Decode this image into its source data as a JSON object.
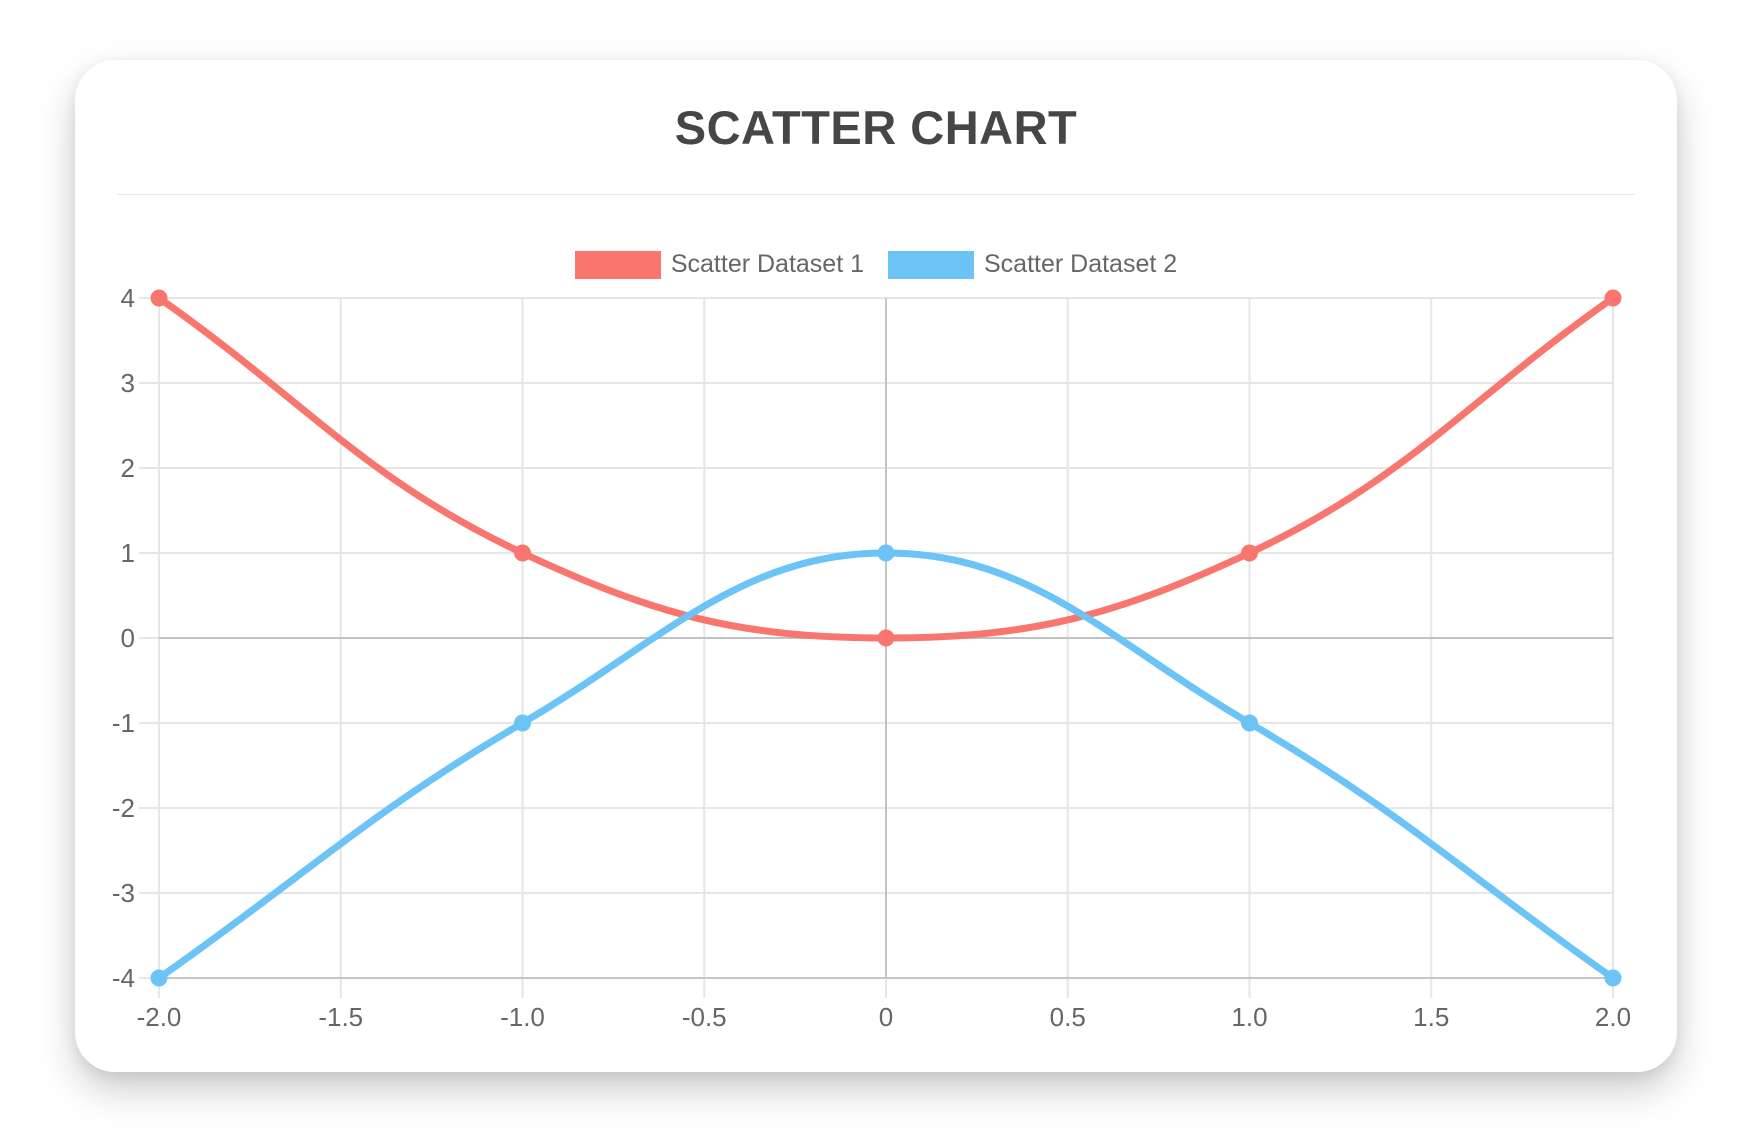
{
  "header": {
    "title": "SCATTER CHART"
  },
  "colors": {
    "title": "#464646",
    "axis_label": "#666666",
    "grid": "#e6e6e6",
    "zero_line": "#c2c2c2",
    "axis_border": "#c6c6c6",
    "card_bg": "#ffffff",
    "page_bg": "#ffffff",
    "series_1": "#f9766f",
    "series_2": "#6cc3f5"
  },
  "chart_data": {
    "type": "scatter",
    "title": "SCATTER CHART",
    "grid": true,
    "legend": {
      "position": "top"
    },
    "xlim": [
      -2,
      2
    ],
    "ylim": [
      -4,
      4
    ],
    "x_ticks": [
      {
        "v": -2.0,
        "label": "-2.0"
      },
      {
        "v": -1.5,
        "label": "-1.5"
      },
      {
        "v": -1.0,
        "label": "-1.0"
      },
      {
        "v": -0.5,
        "label": "-0.5"
      },
      {
        "v": 0,
        "label": "0"
      },
      {
        "v": 0.5,
        "label": "0.5"
      },
      {
        "v": 1.0,
        "label": "1.0"
      },
      {
        "v": 1.5,
        "label": "1.5"
      },
      {
        "v": 2.0,
        "label": "2.0"
      }
    ],
    "y_ticks": [
      {
        "v": 4,
        "label": "4"
      },
      {
        "v": 3,
        "label": "3"
      },
      {
        "v": 2,
        "label": "2"
      },
      {
        "v": 1,
        "label": "1"
      },
      {
        "v": 0,
        "label": "0"
      },
      {
        "v": -1,
        "label": "-1"
      },
      {
        "v": -2,
        "label": "-2"
      },
      {
        "v": -3,
        "label": "-3"
      },
      {
        "v": -4,
        "label": "-4"
      }
    ],
    "series": [
      {
        "name": "Scatter Dataset 1",
        "color": "#f9766f",
        "line_tension": 0.4,
        "points": [
          [
            -2,
            4
          ],
          [
            -1,
            1
          ],
          [
            0,
            0
          ],
          [
            1,
            1
          ],
          [
            2,
            4
          ]
        ]
      },
      {
        "name": "Scatter Dataset 2",
        "color": "#6cc3f5",
        "line_tension": 0.4,
        "points": [
          [
            -2,
            -4
          ],
          [
            -1,
            -1
          ],
          [
            0,
            1
          ],
          [
            1,
            -1
          ],
          [
            2,
            -4
          ]
        ]
      }
    ]
  }
}
